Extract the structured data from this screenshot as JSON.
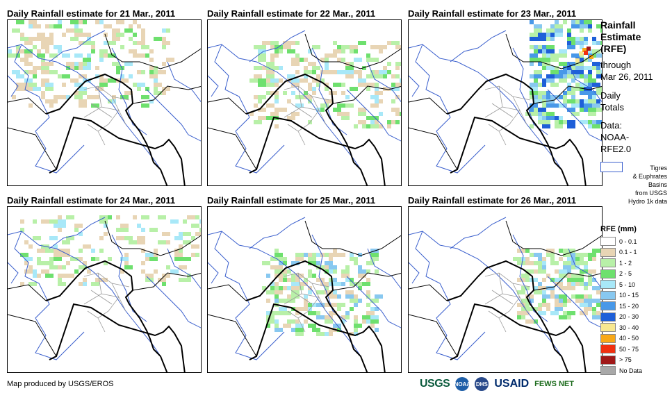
{
  "panels": [
    {
      "title": "Daily Rainfall estimate for 21 Mar., 2011"
    },
    {
      "title": "Daily Rainfall estimate for 22 Mar., 2011"
    },
    {
      "title": "Daily Rainfall estimate for 23 Mar., 2011"
    },
    {
      "title": "Daily Rainfall estimate for 24 Mar., 2011"
    },
    {
      "title": "Daily Rainfall estimate for 25 Mar., 2011"
    },
    {
      "title": "Daily Rainfall estimate for 26 Mar., 2011"
    }
  ],
  "sidebar": {
    "title_line1": "Rainfall",
    "title_line2": "Estimate",
    "title_line3": "(RFE)",
    "through": "through",
    "date": "Mar 26, 2011",
    "daily": "Daily",
    "totals": "Totals",
    "data_label": "Data:",
    "data_source1": "NOAA-",
    "data_source2": "RFE2.0",
    "basin_line1": "Tigres",
    "basin_line2": "& Euphrates",
    "basin_line3": "Basins",
    "basin_line4": "from USGS",
    "basin_line5": "Hydro 1k data"
  },
  "legend": {
    "title": "RFE (mm)",
    "items": [
      {
        "label": "0 - 0.1",
        "color": "#ffffff"
      },
      {
        "label": "0.1 - 1",
        "color": "#e8d5b5"
      },
      {
        "label": "1 - 2",
        "color": "#b8f0a8"
      },
      {
        "label": "2 - 5",
        "color": "#6ee06e"
      },
      {
        "label": "5 - 10",
        "color": "#a8e8f8"
      },
      {
        "label": "10 - 15",
        "color": "#88c8f0"
      },
      {
        "label": "15 - 20",
        "color": "#4898e8"
      },
      {
        "label": "20 - 30",
        "color": "#1e5fd8"
      },
      {
        "label": "30 - 40",
        "color": "#f8e890"
      },
      {
        "label": "40 - 50",
        "color": "#f8a818"
      },
      {
        "label": "50 - 75",
        "color": "#f03010"
      },
      {
        "label": "> 75",
        "color": "#a01818"
      },
      {
        "label": "No Data",
        "color": "#a8a8a8"
      }
    ]
  },
  "footer": {
    "credit": "Map produced by USGS/EROS",
    "logo_usgs": "USGS",
    "logo_noaa": "NOAA",
    "logo_dhs": "DHS",
    "logo_usaid": "USAID",
    "logo_fews": "FEWS NET"
  }
}
